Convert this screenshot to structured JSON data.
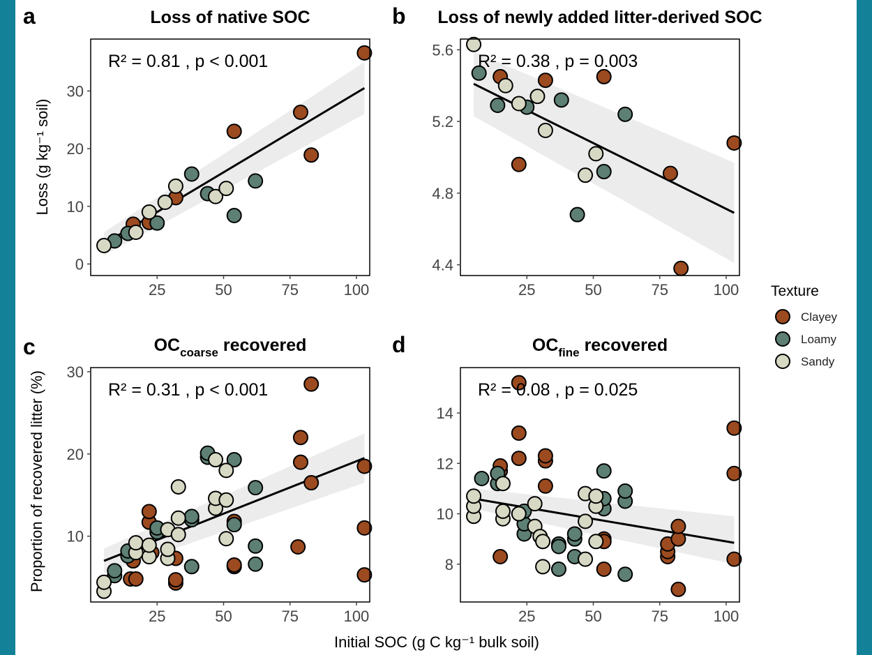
{
  "figure": {
    "shared_xlabel": "Initial SOC (g C kg⁻¹ bulk soil)",
    "ylabel_top": "Loss (g kg⁻¹ soil)",
    "ylabel_bottom": "Proportion of recovered litter (%)",
    "legend": {
      "title": "Texture",
      "items": [
        {
          "label": "Clayey",
          "color": "#9c4a1f"
        },
        {
          "label": "Loamy",
          "color": "#5d7f74"
        },
        {
          "label": "Sandy",
          "color": "#d8d9c4"
        }
      ]
    },
    "colors": {
      "frame": "#138197",
      "line": "#000000",
      "band": "#ececec"
    }
  },
  "chart_data": [
    {
      "type": "scatter",
      "panel": "a",
      "title": "Loss of native SOC",
      "stat_text": "R² = 0.81 , p < 0.001",
      "xlim": [
        0,
        105
      ],
      "ylim": [
        -2,
        39
      ],
      "xticks": [
        "25",
        "50",
        "75",
        "100"
      ],
      "xtick_values": [
        25,
        50,
        75,
        100
      ],
      "yticks": [
        "0",
        "10",
        "20",
        "30"
      ],
      "ytick_values": [
        0,
        10,
        20,
        30
      ],
      "fit": {
        "x": [
          5,
          103
        ],
        "y": [
          3.5,
          30.5
        ],
        "band_lo": [
          1.5,
          26
        ],
        "band_hi": [
          5.5,
          35
        ]
      },
      "series": [
        {
          "name": "Clayey",
          "points": [
            [
              16,
              6.9
            ],
            [
              22,
              7.2
            ],
            [
              32,
              11.5
            ],
            [
              54,
              23
            ],
            [
              79,
              26.3
            ],
            [
              83,
              18.9
            ],
            [
              103,
              36.6
            ]
          ]
        },
        {
          "name": "Loamy",
          "points": [
            [
              9,
              4
            ],
            [
              14,
              5.3
            ],
            [
              25,
              7.1
            ],
            [
              38,
              15.6
            ],
            [
              44,
              12.2
            ],
            [
              54,
              8.4
            ],
            [
              62,
              14.4
            ]
          ]
        },
        {
          "name": "Sandy",
          "points": [
            [
              5,
              3.2
            ],
            [
              17,
              5.5
            ],
            [
              22,
              9
            ],
            [
              28,
              10.7
            ],
            [
              32,
              13.5
            ],
            [
              47,
              11.7
            ],
            [
              51,
              13.1
            ]
          ]
        }
      ]
    },
    {
      "type": "scatter",
      "panel": "b",
      "title": "Loss of newly added litter-derived SOC",
      "stat_text": "R² = 0.38 , p = 0.003",
      "xlim": [
        0,
        105
      ],
      "ylim": [
        4.34,
        5.66
      ],
      "xticks": [
        "25",
        "50",
        "75",
        "100"
      ],
      "xtick_values": [
        25,
        50,
        75,
        100
      ],
      "yticks": [
        "4.4",
        "4.8",
        "5.2",
        "5.6"
      ],
      "ytick_values": [
        4.4,
        4.8,
        5.2,
        5.6
      ],
      "fit": {
        "x": [
          5,
          103
        ],
        "y": [
          5.41,
          4.69
        ],
        "band_lo": [
          5.23,
          4.41
        ],
        "band_hi": [
          5.59,
          4.97
        ]
      },
      "series": [
        {
          "name": "Clayey",
          "points": [
            [
              15,
              5.45
            ],
            [
              22,
              4.96
            ],
            [
              32,
              5.43
            ],
            [
              54,
              5.45
            ],
            [
              79,
              4.91
            ],
            [
              83,
              4.38
            ],
            [
              103,
              5.08
            ]
          ]
        },
        {
          "name": "Loamy",
          "points": [
            [
              7,
              5.47
            ],
            [
              14,
              5.29
            ],
            [
              25,
              5.28
            ],
            [
              38,
              5.32
            ],
            [
              44,
              4.68
            ],
            [
              54,
              4.92
            ],
            [
              62,
              5.24
            ]
          ]
        },
        {
          "name": "Sandy",
          "points": [
            [
              5,
              5.63
            ],
            [
              17,
              5.4
            ],
            [
              22,
              5.3
            ],
            [
              29,
              5.34
            ],
            [
              32,
              5.15
            ],
            [
              47,
              4.9
            ],
            [
              51,
              5.02
            ]
          ]
        }
      ]
    },
    {
      "type": "scatter",
      "panel": "c",
      "title_main": "OC",
      "title_sub": "coarse",
      "title_rest": " recovered",
      "stat_text": "R² = 0.31 , p < 0.001",
      "xlim": [
        0,
        105
      ],
      "ylim": [
        2,
        30.5
      ],
      "xticks": [
        "25",
        "50",
        "75",
        "100"
      ],
      "xtick_values": [
        25,
        50,
        75,
        100
      ],
      "yticks": [
        "10",
        "20",
        "30"
      ],
      "ytick_values": [
        10,
        20,
        30
      ],
      "fit": {
        "x": [
          5,
          103
        ],
        "y": [
          7,
          19.5
        ],
        "band_lo": [
          5.5,
          16.5
        ],
        "band_hi": [
          8.5,
          22.5
        ]
      },
      "series": [
        {
          "name": "Clayey",
          "points": [
            [
              15,
              4.8
            ],
            [
              17,
              4.8
            ],
            [
              16,
              7
            ],
            [
              22,
              11.7
            ],
            [
              22,
              13
            ],
            [
              23,
              8
            ],
            [
              32,
              4.3
            ],
            [
              32,
              4.7
            ],
            [
              32,
              7.3
            ],
            [
              54,
              6.3
            ],
            [
              54,
              6.5
            ],
            [
              54,
              11.8
            ],
            [
              78,
              8.7
            ],
            [
              79,
              19
            ],
            [
              79,
              22
            ],
            [
              83,
              16.5
            ],
            [
              83,
              28.5
            ],
            [
              103,
              5.3
            ],
            [
              103,
              11
            ],
            [
              103,
              18.5
            ]
          ]
        },
        {
          "name": "Loamy",
          "points": [
            [
              9,
              5.2
            ],
            [
              9,
              5.8
            ],
            [
              14,
              7.6
            ],
            [
              14,
              8.2
            ],
            [
              25,
              10.5
            ],
            [
              25,
              11
            ],
            [
              38,
              6.3
            ],
            [
              38,
              12
            ],
            [
              38,
              12.4
            ],
            [
              44,
              19.6
            ],
            [
              44,
              20.1
            ],
            [
              54,
              11.4
            ],
            [
              54,
              19.3
            ],
            [
              62,
              6.6
            ],
            [
              62,
              8.8
            ],
            [
              62,
              15.9
            ]
          ]
        },
        {
          "name": "Sandy",
          "points": [
            [
              5,
              3.3
            ],
            [
              5,
              4.4
            ],
            [
              17,
              8
            ],
            [
              17,
              9.2
            ],
            [
              22,
              7.5
            ],
            [
              22,
              8.9
            ],
            [
              29,
              7.3
            ],
            [
              29,
              8.4
            ],
            [
              29,
              10.8
            ],
            [
              33,
              10.2
            ],
            [
              33,
              12.2
            ],
            [
              33,
              16
            ],
            [
              47,
              13.4
            ],
            [
              47,
              14.6
            ],
            [
              47,
              19.3
            ],
            [
              51,
              9.7
            ],
            [
              51,
              14.4
            ],
            [
              51,
              18
            ]
          ]
        }
      ]
    },
    {
      "type": "scatter",
      "panel": "d",
      "title_main": "OC",
      "title_sub": "fine",
      "title_rest": " recovered",
      "stat_text": "R² = 0.08 , p = 0.025",
      "xlim": [
        0,
        105
      ],
      "ylim": [
        6.5,
        15.8
      ],
      "xticks": [
        "25",
        "50",
        "75",
        "100"
      ],
      "xtick_values": [
        25,
        50,
        75,
        100
      ],
      "yticks": [
        "8",
        "10",
        "12",
        "14"
      ],
      "ytick_values": [
        8,
        10,
        12,
        14
      ],
      "fit": {
        "x": [
          5,
          103
        ],
        "y": [
          10.6,
          8.85
        ],
        "band_lo": [
          10.2,
          8.0
        ],
        "band_hi": [
          11.0,
          9.9
        ]
      },
      "series": [
        {
          "name": "Clayey",
          "points": [
            [
              15,
              8.3
            ],
            [
              15,
              11.7
            ],
            [
              15,
              11.9
            ],
            [
              22,
              12.2
            ],
            [
              22,
              13.2
            ],
            [
              22,
              15.2
            ],
            [
              32,
              11.1
            ],
            [
              32,
              12.1
            ],
            [
              32,
              12.3
            ],
            [
              54,
              7.8
            ],
            [
              54,
              9.0
            ],
            [
              54,
              8.9
            ],
            [
              78,
              8.3
            ],
            [
              78,
              8.5
            ],
            [
              78,
              8.8
            ],
            [
              82,
              7.0
            ],
            [
              82,
              9.0
            ],
            [
              82,
              9.5
            ],
            [
              103,
              8.2
            ],
            [
              103,
              11.6
            ],
            [
              103,
              13.4
            ]
          ]
        },
        {
          "name": "Loamy",
          "points": [
            [
              8,
              11.4
            ],
            [
              14,
              11.2
            ],
            [
              14,
              11.6
            ],
            [
              24,
              9.2
            ],
            [
              24,
              9.6
            ],
            [
              24,
              10.1
            ],
            [
              37,
              7.8
            ],
            [
              37,
              8.8
            ],
            [
              37,
              8.7
            ],
            [
              43,
              8.3
            ],
            [
              43,
              9.0
            ],
            [
              43,
              9.2
            ],
            [
              54,
              10.2
            ],
            [
              54,
              10.6
            ],
            [
              54,
              11.7
            ],
            [
              62,
              7.6
            ],
            [
              62,
              10.5
            ],
            [
              62,
              10.9
            ]
          ]
        },
        {
          "name": "Sandy",
          "points": [
            [
              5,
              9.9
            ],
            [
              5,
              10.3
            ],
            [
              5,
              10.7
            ],
            [
              16,
              9.8
            ],
            [
              16,
              10.1
            ],
            [
              16,
              11.2
            ],
            [
              22,
              10.0
            ],
            [
              28,
              9.5
            ],
            [
              28,
              10.4
            ],
            [
              30,
              9.1
            ],
            [
              31,
              8.9
            ],
            [
              31,
              7.9
            ],
            [
              47,
              8.2
            ],
            [
              47,
              9.7
            ],
            [
              47,
              10.8
            ],
            [
              51,
              8.9
            ],
            [
              51,
              10.3
            ],
            [
              51,
              10.7
            ]
          ]
        }
      ]
    }
  ]
}
